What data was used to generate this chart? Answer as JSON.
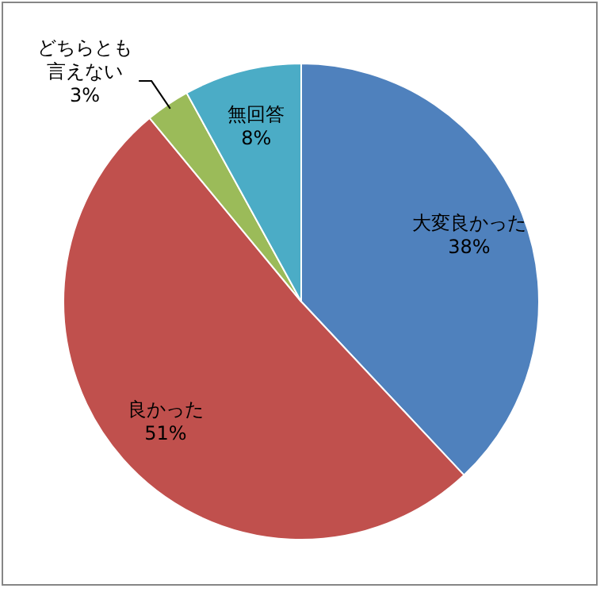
{
  "chart_data": {
    "type": "pie",
    "categories": [
      "大変良かった",
      "良かった",
      "どちらとも言えない",
      "無回答"
    ],
    "values": [
      38,
      51,
      3,
      8
    ],
    "colors": [
      "#4f81bd",
      "#c0504d",
      "#9bbb59",
      "#4bacc6"
    ],
    "value_labels": [
      "38%",
      "51%",
      "3%",
      "8%"
    ]
  }
}
